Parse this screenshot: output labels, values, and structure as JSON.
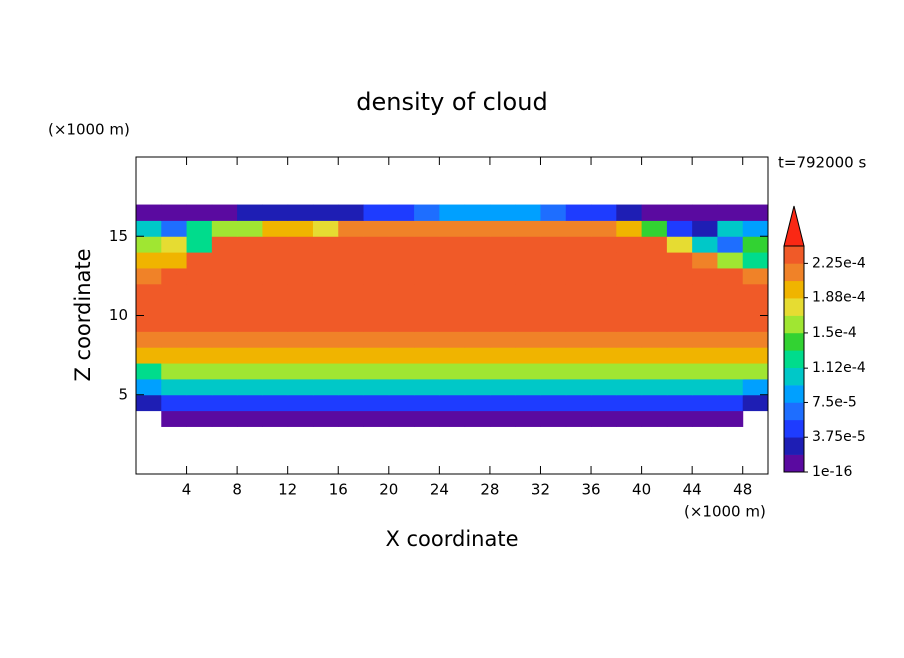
{
  "chart_data": {
    "type": "contour",
    "title": "density of cloud",
    "x_label": "X coordinate",
    "y_label": "Z coordinate",
    "x_unit": "(×1000 m)",
    "y_unit": "(×1000 m)",
    "annotation": "t=792000 s",
    "xlim": [
      0,
      50
    ],
    "ylim": [
      0,
      20
    ],
    "xticks": [
      4,
      8,
      12,
      16,
      20,
      24,
      28,
      32,
      36,
      40,
      44,
      48
    ],
    "yticks": [
      5,
      10,
      15
    ],
    "x": [
      1,
      3,
      5,
      7,
      9,
      11,
      13,
      15,
      17,
      19,
      21,
      23,
      25,
      27,
      29,
      31,
      33,
      35,
      37,
      39,
      41,
      43,
      45,
      47,
      49
    ],
    "y": [
      3.5,
      4.5,
      5.5,
      6.5,
      7.5,
      8.5,
      9.5,
      10.5,
      11.5,
      12.5,
      13.5,
      14.5,
      15.5,
      16.5
    ],
    "levels": [
      1e-16,
      1.875e-05,
      3.75e-05,
      5.625e-05,
      7.5e-05,
      9.375e-05,
      0.0001125,
      0.00013125,
      0.00015,
      0.00016875,
      0.0001875,
      0.00020625,
      0.000225,
      0.00024375
    ],
    "colors": [
      "#5a0aa0",
      "#1e1eb4",
      "#1e3cff",
      "#1e6eff",
      "#00a0ff",
      "#00c8c8",
      "#00dc8c",
      "#32d232",
      "#a0e632",
      "#e6dc32",
      "#f0b400",
      "#f08228",
      "#f05a28",
      "#fa2814",
      "#f0a0a0"
    ],
    "extend": "max",
    "colorbar_ticks": [
      {
        "value": 1e-16,
        "label": "1e-16"
      },
      {
        "value": 3.75e-05,
        "label": "3.75e-5"
      },
      {
        "value": 7.5e-05,
        "label": "7.5e-5"
      },
      {
        "value": 0.000112,
        "label": "1.12e-4"
      },
      {
        "value": 0.00015,
        "label": "1.5e-4"
      },
      {
        "value": 0.000188,
        "label": "1.88e-4"
      },
      {
        "value": 0.000225,
        "label": "2.25e-4"
      }
    ],
    "values": [
      [
        null,
        1e-05,
        1e-05,
        1e-05,
        1e-05,
        1e-05,
        1e-05,
        1e-05,
        1e-05,
        1e-05,
        1e-05,
        1e-05,
        1e-05,
        1e-05,
        1e-05,
        1e-05,
        1e-05,
        1e-05,
        1e-05,
        1e-05,
        1e-05,
        1e-05,
        1e-05,
        1e-05,
        null
      ],
      [
        3e-05,
        4e-05,
        4e-05,
        4e-05,
        4e-05,
        4e-05,
        4e-05,
        4e-05,
        4e-05,
        4e-05,
        4e-05,
        4e-05,
        4e-05,
        4e-05,
        4e-05,
        4e-05,
        4e-05,
        4e-05,
        4e-05,
        4e-05,
        4e-05,
        4e-05,
        4e-05,
        4e-05,
        3e-05
      ],
      [
        8e-05,
        0.00011,
        0.00011,
        0.00011,
        0.00011,
        0.00011,
        0.00011,
        0.00011,
        0.00011,
        0.00011,
        0.00011,
        0.00011,
        0.00011,
        0.00011,
        0.00011,
        0.00011,
        0.00011,
        0.00011,
        0.00011,
        0.00011,
        0.00011,
        0.00011,
        0.00011,
        0.00011,
        9e-05
      ],
      [
        0.00013,
        0.00016,
        0.00016,
        0.00016,
        0.00016,
        0.00016,
        0.00016,
        0.00016,
        0.00016,
        0.00016,
        0.00016,
        0.00016,
        0.00016,
        0.00016,
        0.00016,
        0.00016,
        0.00016,
        0.00016,
        0.00016,
        0.00016,
        0.00016,
        0.00016,
        0.00016,
        0.00016,
        0.00016
      ],
      [
        0.0002,
        0.000195,
        0.000195,
        0.000195,
        0.000195,
        0.000195,
        0.000195,
        0.000195,
        0.000195,
        0.000195,
        0.000195,
        0.000195,
        0.000195,
        0.000195,
        0.000195,
        0.000195,
        0.000195,
        0.000195,
        0.000195,
        0.000195,
        0.000195,
        0.000195,
        0.000195,
        0.000195,
        0.000195
      ],
      [
        0.000215,
        0.000215,
        0.000215,
        0.000215,
        0.000215,
        0.000215,
        0.000215,
        0.000215,
        0.000215,
        0.000215,
        0.000215,
        0.000215,
        0.000215,
        0.000215,
        0.000215,
        0.000215,
        0.000215,
        0.000215,
        0.000215,
        0.000215,
        0.000215,
        0.000215,
        0.000215,
        0.000215,
        0.000215
      ],
      [
        0.00024,
        0.00023,
        0.00023,
        0.00023,
        0.00023,
        0.00023,
        0.00023,
        0.00023,
        0.00023,
        0.00023,
        0.00023,
        0.00023,
        0.00023,
        0.00023,
        0.00023,
        0.00023,
        0.00023,
        0.00023,
        0.00023,
        0.00023,
        0.00023,
        0.00023,
        0.00023,
        0.00023,
        0.00023
      ],
      [
        0.000235,
        0.000235,
        0.000235,
        0.000235,
        0.000235,
        0.000235,
        0.000235,
        0.000235,
        0.000235,
        0.000235,
        0.000235,
        0.000235,
        0.000235,
        0.000235,
        0.000235,
        0.000235,
        0.000235,
        0.000235,
        0.000235,
        0.000235,
        0.000235,
        0.000235,
        0.000235,
        0.000235,
        0.000235
      ],
      [
        0.000235,
        0.00023,
        0.00023,
        0.00023,
        0.00023,
        0.00023,
        0.00023,
        0.00023,
        0.00023,
        0.00023,
        0.00023,
        0.00023,
        0.00023,
        0.00023,
        0.00023,
        0.00023,
        0.00023,
        0.00023,
        0.00023,
        0.00023,
        0.00023,
        0.00023,
        0.00023,
        0.00023,
        0.00023
      ],
      [
        0.00022,
        0.00023,
        0.00023,
        0.00023,
        0.00023,
        0.00023,
        0.00023,
        0.00023,
        0.00023,
        0.00023,
        0.00023,
        0.00023,
        0.00023,
        0.00023,
        0.00023,
        0.00023,
        0.00023,
        0.00023,
        0.00023,
        0.00023,
        0.00023,
        0.00023,
        0.00023,
        0.00023,
        0.00022
      ],
      [
        0.00019,
        0.0002,
        0.00023,
        0.00023,
        0.00023,
        0.00023,
        0.00023,
        0.00023,
        0.00023,
        0.00023,
        0.00023,
        0.00023,
        0.00023,
        0.00023,
        0.00023,
        0.00023,
        0.00023,
        0.00023,
        0.00023,
        0.00023,
        0.00023,
        0.00023,
        0.00021,
        0.00015,
        0.00012
      ],
      [
        0.00015,
        0.00017,
        0.00012,
        0.000225,
        0.000225,
        0.000225,
        0.000225,
        0.000225,
        0.000225,
        0.000225,
        0.000225,
        0.000225,
        0.000225,
        0.000225,
        0.000225,
        0.000225,
        0.000225,
        0.000225,
        0.000225,
        0.000225,
        0.000225,
        0.00018,
        0.0001,
        6e-05,
        0.00014
      ],
      [
        0.0001,
        6e-05,
        0.00013,
        0.00016,
        0.00016,
        0.00019,
        0.00019,
        0.00017,
        0.00021,
        0.00021,
        0.00021,
        0.00021,
        0.00021,
        0.00021,
        0.00021,
        0.00021,
        0.00021,
        0.00021,
        0.00021,
        0.0002,
        0.00014,
        5e-05,
        3e-05,
        0.0001,
        8e-05
      ],
      [
        1e-05,
        1e-05,
        1e-05,
        1e-05,
        3e-05,
        3e-05,
        3e-05,
        3e-05,
        3e-05,
        4e-05,
        5e-05,
        6e-05,
        8e-05,
        9e-05,
        9e-05,
        8e-05,
        6e-05,
        5e-05,
        4e-05,
        3e-05,
        1e-05,
        1e-05,
        1e-05,
        1e-05,
        1e-05
      ]
    ]
  }
}
